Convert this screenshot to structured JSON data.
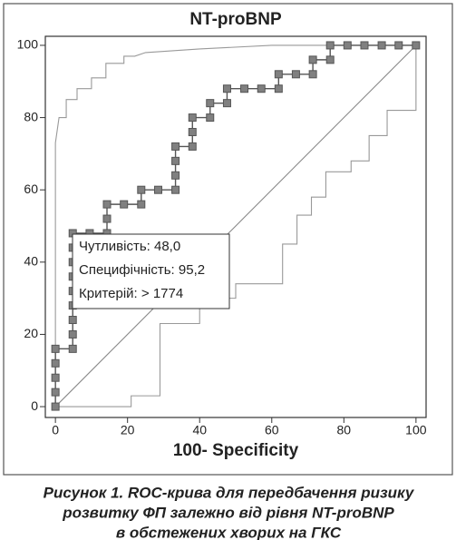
{
  "chart_data": {
    "type": "roc",
    "title": "NT-proBNP",
    "xlabel": "100- Specificity",
    "xlim": [
      -2.8,
      102.8
    ],
    "ylim": [
      -3,
      102.5
    ],
    "xticks": [
      0,
      20,
      40,
      60,
      80,
      100
    ],
    "yticks": [
      0,
      20,
      40,
      60,
      80,
      100
    ],
    "annotations": [
      "Чутливість: 48,0",
      "Специфічність: 95,2",
      "Критерій: > 1774"
    ],
    "series": [
      {
        "color": "#555555",
        "markers": true,
        "x": [
          0,
          0,
          0,
          0,
          0,
          4.8,
          4.8,
          4.8,
          4.8,
          4.8,
          4.8,
          4.8,
          4.8,
          4.8,
          9.5,
          14.3,
          14.3,
          14.3,
          19,
          23.8,
          23.8,
          28.5,
          33.3,
          33.3,
          33.3,
          33.3,
          38,
          38,
          38,
          42.9,
          42.9,
          47.6,
          47.6,
          52.4,
          57.1,
          61.9,
          61.9,
          66.7,
          71.4,
          71.4,
          76.2,
          76.2,
          81,
          85.7,
          90.5,
          95.2,
          100
        ],
        "y": [
          0,
          4,
          8,
          12,
          16,
          16,
          20,
          24,
          28,
          32,
          36,
          40,
          44,
          48,
          48,
          48,
          52,
          56,
          56,
          56,
          60,
          60,
          60,
          64,
          68,
          72,
          72,
          76,
          80,
          80,
          84,
          84,
          88,
          88,
          88,
          88,
          92,
          92,
          92,
          96,
          96,
          100,
          100,
          100,
          100,
          100,
          100
        ]
      },
      {
        "color": "#999999",
        "markers": false,
        "x": [
          0,
          0,
          1,
          3,
          3,
          6,
          6,
          10,
          10,
          14,
          14,
          19,
          19,
          22,
          25,
          40,
          60,
          100
        ],
        "y": [
          0,
          73,
          80,
          80,
          85,
          85,
          88,
          88,
          91,
          91,
          95,
          95,
          97,
          97,
          98,
          99,
          100,
          100
        ]
      },
      {
        "color": "#999999",
        "markers": false,
        "x": [
          0,
          21,
          21,
          29,
          29,
          40,
          40,
          50,
          50,
          63,
          63,
          67,
          67,
          71,
          71,
          75,
          75,
          82,
          82,
          87,
          87,
          92,
          92,
          100,
          100
        ],
        "y": [
          0,
          0,
          3,
          3,
          23,
          23,
          30,
          30,
          34,
          34,
          45,
          45,
          53,
          53,
          58,
          58,
          65,
          65,
          68,
          68,
          75,
          75,
          82,
          82,
          100
        ]
      },
      {
        "color": "#888888",
        "markers": false,
        "x": [
          0,
          100
        ],
        "y": [
          0,
          100
        ]
      }
    ]
  },
  "caption": [
    "Рисунок 1. ROC-крива для передбачення ризику",
    "розвитку ФП залежно від рівня NT-proBNP",
    "в обстежених хворих на ГКС"
  ]
}
